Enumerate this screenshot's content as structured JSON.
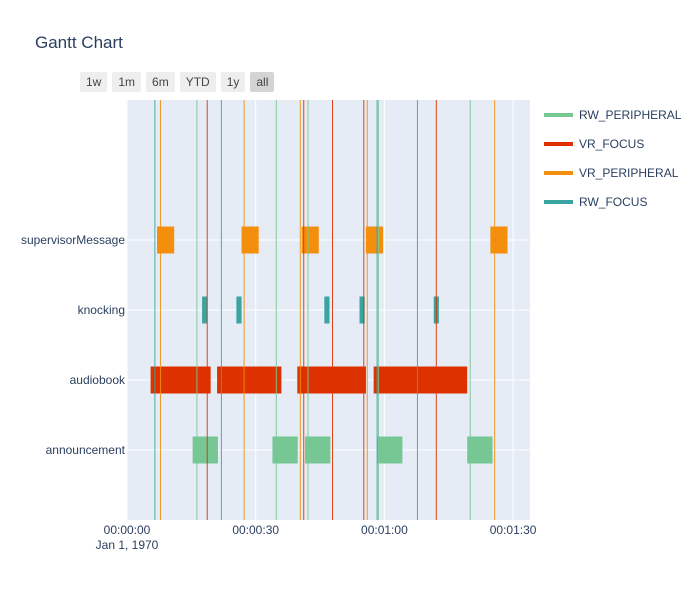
{
  "title": "Gantt Chart",
  "range_buttons": [
    "1w",
    "1m",
    "6m",
    "YTD",
    "1y",
    "all"
  ],
  "active_range": "all",
  "chart_data": {
    "type": "gantt",
    "title": "Gantt Chart",
    "x_axis": {
      "type": "time",
      "range": [
        "00:00:00",
        "00:01:34"
      ],
      "ticks": [
        "00:00:00",
        "00:00:30",
        "00:01:00",
        "00:01:30"
      ],
      "tick_values_seconds": [
        0,
        30,
        60,
        90
      ],
      "date_label": "Jan 1, 1970"
    },
    "y_categories": [
      "announcement",
      "audiobook",
      "knocking",
      "supervisorMessage"
    ],
    "legend": {
      "placement": "right",
      "entries": [
        {
          "name": "RW_PERIPHERAL",
          "color": "#77c795"
        },
        {
          "name": "VR_FOCUS",
          "color": "#dd3100"
        },
        {
          "name": "VR_PERIPHERAL",
          "color": "#f48f0d"
        },
        {
          "name": "RW_FOCUS",
          "color": "#3aa4a0"
        }
      ]
    },
    "tasks": [
      {
        "task": "supervisorMessage",
        "start_s": 7.0,
        "end_s": 11.0,
        "group": "VR_PERIPHERAL"
      },
      {
        "task": "supervisorMessage",
        "start_s": 26.7,
        "end_s": 30.7,
        "group": "VR_PERIPHERAL"
      },
      {
        "task": "supervisorMessage",
        "start_s": 40.7,
        "end_s": 44.7,
        "group": "VR_PERIPHERAL"
      },
      {
        "task": "supervisorMessage",
        "start_s": 55.7,
        "end_s": 59.7,
        "group": "VR_PERIPHERAL"
      },
      {
        "task": "supervisorMessage",
        "start_s": 84.7,
        "end_s": 88.7,
        "group": "VR_PERIPHERAL"
      },
      {
        "task": "knocking",
        "start_s": 17.5,
        "end_s": 18.7,
        "group": "RW_FOCUS"
      },
      {
        "task": "knocking",
        "start_s": 25.5,
        "end_s": 26.7,
        "group": "RW_FOCUS"
      },
      {
        "task": "knocking",
        "start_s": 46.0,
        "end_s": 47.2,
        "group": "RW_FOCUS"
      },
      {
        "task": "knocking",
        "start_s": 54.2,
        "end_s": 55.4,
        "group": "RW_FOCUS"
      },
      {
        "task": "knocking",
        "start_s": 71.5,
        "end_s": 72.7,
        "group": "RW_FOCUS"
      },
      {
        "task": "audiobook",
        "start_s": 5.5,
        "end_s": 19.5,
        "group": "VR_FOCUS"
      },
      {
        "task": "audiobook",
        "start_s": 21.0,
        "end_s": 36.0,
        "group": "VR_FOCUS"
      },
      {
        "task": "audiobook",
        "start_s": 39.7,
        "end_s": 55.7,
        "group": "VR_FOCUS"
      },
      {
        "task": "audiobook",
        "start_s": 57.5,
        "end_s": 79.3,
        "group": "VR_FOCUS"
      },
      {
        "task": "announcement",
        "start_s": 15.3,
        "end_s": 21.2,
        "group": "RW_PERIPHERAL"
      },
      {
        "task": "announcement",
        "start_s": 33.9,
        "end_s": 39.8,
        "group": "RW_PERIPHERAL"
      },
      {
        "task": "announcement",
        "start_s": 41.5,
        "end_s": 47.4,
        "group": "RW_PERIPHERAL"
      },
      {
        "task": "announcement",
        "start_s": 58.3,
        "end_s": 64.2,
        "group": "RW_PERIPHERAL"
      },
      {
        "task": "announcement",
        "start_s": 79.3,
        "end_s": 85.2,
        "group": "RW_PERIPHERAL"
      }
    ],
    "event_lines": [
      {
        "x_s": 6.5,
        "group": "RW_FOCUS"
      },
      {
        "x_s": 7.8,
        "group": "VR_PERIPHERAL"
      },
      {
        "x_s": 16.3,
        "group": "RW_PERIPHERAL"
      },
      {
        "x_s": 18.7,
        "group": "VR_FOCUS"
      },
      {
        "x_s": 22.0,
        "group": "RW_FOCUS"
      },
      {
        "x_s": 27.3,
        "group": "VR_PERIPHERAL"
      },
      {
        "x_s": 34.8,
        "group": "RW_PERIPHERAL"
      },
      {
        "x_s": 40.4,
        "group": "VR_PERIPHERAL"
      },
      {
        "x_s": 41.2,
        "group": "VR_FOCUS"
      },
      {
        "x_s": 42.2,
        "group": "RW_PERIPHERAL"
      },
      {
        "x_s": 47.9,
        "group": "VR_FOCUS"
      },
      {
        "x_s": 55.2,
        "group": "VR_FOCUS"
      },
      {
        "x_s": 56.0,
        "group": "VR_PERIPHERAL"
      },
      {
        "x_s": 58.3,
        "group": "RW_FOCUS"
      },
      {
        "x_s": 58.6,
        "group": "RW_PERIPHERAL"
      },
      {
        "x_s": 67.7,
        "group": "RW_FOCUS"
      },
      {
        "x_s": 72.1,
        "group": "VR_FOCUS"
      },
      {
        "x_s": 80.0,
        "group": "RW_PERIPHERAL"
      },
      {
        "x_s": 85.7,
        "group": "VR_PERIPHERAL"
      }
    ]
  }
}
